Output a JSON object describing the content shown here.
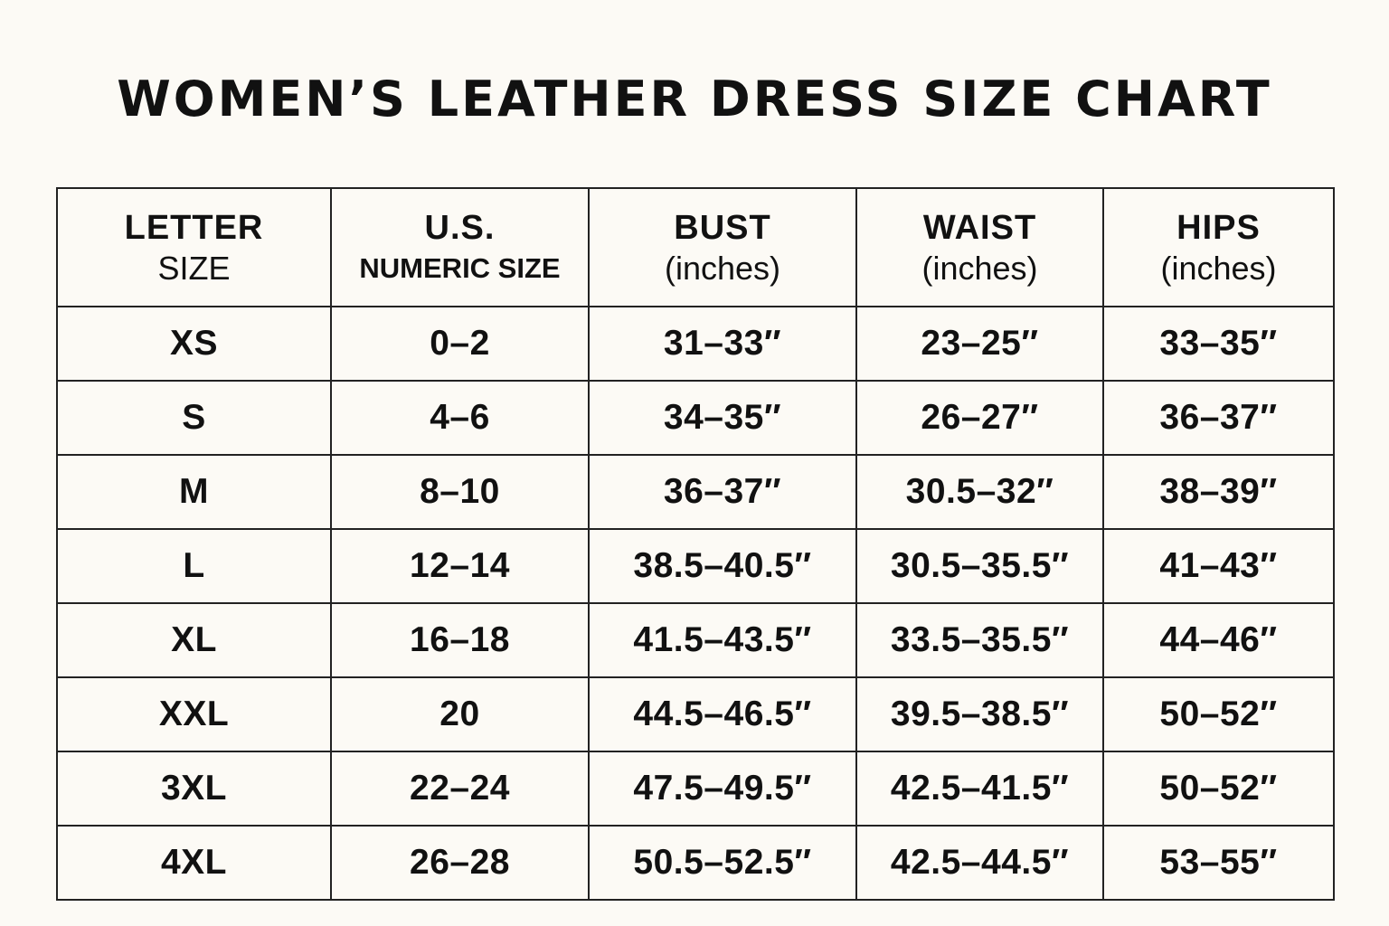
{
  "header": {
    "title": "WOMEN’S LEATHER DRESS SIZE CHART"
  },
  "table": {
    "columns": [
      [
        "LETTER",
        "SIZE"
      ],
      [
        "U.S.",
        "NUMERIC SIZE"
      ],
      [
        "BUST",
        "(inches)"
      ],
      [
        "WAIST",
        "(inches)"
      ],
      [
        "HIPS",
        "(inches)"
      ]
    ],
    "rows": [
      [
        "XS",
        "0–2",
        "31–33″",
        "23–25″",
        "33–35″"
      ],
      [
        "S",
        "4–6",
        "34–35″",
        "26–27″",
        "36–37″"
      ],
      [
        "M",
        "8–10",
        "36–37″",
        "30.5–32″",
        "38–39″"
      ],
      [
        "L",
        "12–14",
        "38.5–40.5″",
        "30.5–35.5″",
        "41–43″"
      ],
      [
        "XL",
        "16–18",
        "41.5–43.5″",
        "33.5–35.5″",
        "44–46″"
      ],
      [
        "XXL",
        "20",
        "44.5–46.5″",
        "39.5–38.5″",
        "50–52″"
      ],
      [
        "3XL",
        "22–24",
        "47.5–49.5″",
        "42.5–41.5″",
        "50–52″"
      ],
      [
        "4XL",
        "26–28",
        "50.5–52.5″",
        "42.5–44.5″",
        "53–55″"
      ]
    ]
  }
}
